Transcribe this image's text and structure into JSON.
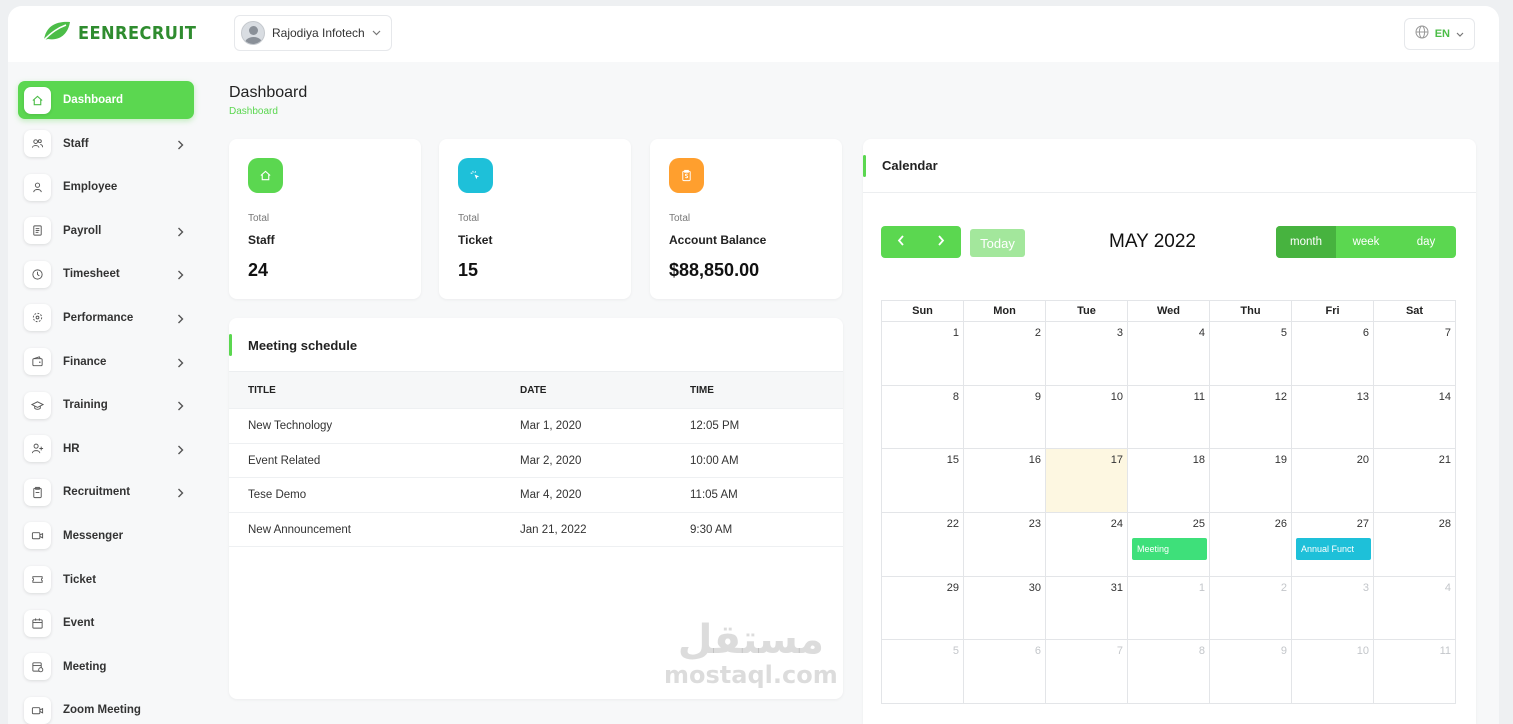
{
  "brand": {
    "name": "EENRECRUIT",
    "color": "#2f8c2f",
    "accent": "#5bd750"
  },
  "company": {
    "name": "Rajodiya Infotech"
  },
  "language": {
    "code": "EN"
  },
  "sidebar": {
    "items": [
      {
        "label": "Dashboard",
        "icon": "home-icon",
        "active": true,
        "chevron": false
      },
      {
        "label": "Staff",
        "icon": "users-icon",
        "chevron": true
      },
      {
        "label": "Employee",
        "icon": "user-icon",
        "chevron": false
      },
      {
        "label": "Payroll",
        "icon": "receipt-icon",
        "chevron": true
      },
      {
        "label": "Timesheet",
        "icon": "clock-icon",
        "chevron": true
      },
      {
        "label": "Performance",
        "icon": "target-icon",
        "chevron": true
      },
      {
        "label": "Finance",
        "icon": "wallet-icon",
        "chevron": true
      },
      {
        "label": "Training",
        "icon": "graduation-cap-icon",
        "chevron": true
      },
      {
        "label": "HR",
        "icon": "user-plus-icon",
        "chevron": true
      },
      {
        "label": "Recruitment",
        "icon": "clipboard-icon",
        "chevron": true
      },
      {
        "label": "Messenger",
        "icon": "video-icon",
        "chevron": false
      },
      {
        "label": "Ticket",
        "icon": "ticket-icon",
        "chevron": false
      },
      {
        "label": "Event",
        "icon": "calendar-icon",
        "chevron": false
      },
      {
        "label": "Meeting",
        "icon": "calendar-clock-icon",
        "chevron": false
      },
      {
        "label": "Zoom Meeting",
        "icon": "camera-icon",
        "chevron": false
      }
    ]
  },
  "page": {
    "title": "Dashboard",
    "breadcrumb": "Dashboard"
  },
  "stats": [
    {
      "small": "Total",
      "label": "Staff",
      "value": "24",
      "color": "#5bd750",
      "icon": "home-icon"
    },
    {
      "small": "Total",
      "label": "Ticket",
      "value": "15",
      "color": "#1ec0d9",
      "icon": "pointer-click-icon"
    },
    {
      "small": "Total",
      "label": "Account Balance",
      "value": "$88,850.00",
      "color": "#ff9f2e",
      "icon": "clipboard-dollar-icon"
    }
  ],
  "meetings": {
    "title": "Meeting schedule",
    "columns": [
      "TITLE",
      "DATE",
      "TIME"
    ],
    "rows": [
      [
        "New Technology",
        "Mar 1, 2020",
        "12:05 PM"
      ],
      [
        "Event Related",
        "Mar 2, 2020",
        "10:00 AM"
      ],
      [
        "Tese Demo",
        "Mar 4, 2020",
        "11:05 AM"
      ],
      [
        "New Announcement",
        "Jan 21, 2022",
        "9:30 AM"
      ]
    ]
  },
  "calendar": {
    "title": "Calendar",
    "month_title": "MAY 2022",
    "today_label": "Today",
    "views": [
      "month",
      "week",
      "day"
    ],
    "active_view": "month",
    "dow": [
      "Sun",
      "Mon",
      "Tue",
      "Wed",
      "Thu",
      "Fri",
      "Sat"
    ],
    "weeks": [
      [
        "1",
        "2",
        "3",
        "4",
        "5",
        "6",
        "7"
      ],
      [
        "8",
        "9",
        "10",
        "11",
        "12",
        "13",
        "14"
      ],
      [
        "15",
        "16",
        "17",
        "18",
        "19",
        "20",
        "21"
      ],
      [
        "22",
        "23",
        "24",
        "25",
        "26",
        "27",
        "28"
      ],
      [
        "29",
        "30",
        "31",
        "1",
        "2",
        "3",
        "4"
      ],
      [
        "5",
        "6",
        "7",
        "8",
        "9",
        "10",
        "11"
      ]
    ],
    "today": "17",
    "events": [
      {
        "day": "25",
        "label": "Meeting",
        "color": "#3ee07a"
      },
      {
        "day": "27",
        "label": "Annual Funct",
        "color": "#1ec0d9"
      }
    ]
  },
  "watermark": {
    "arabic": "مستقل",
    "latin": "mostaql.com"
  }
}
